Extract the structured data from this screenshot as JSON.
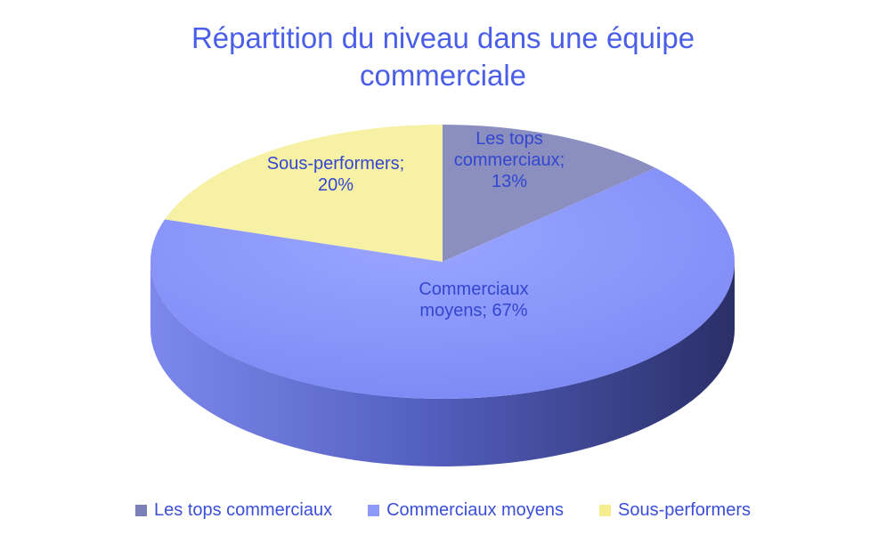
{
  "chart_data": {
    "type": "pie",
    "title": [
      "Répartition du niveau dans une équipe",
      "commerciale"
    ],
    "slices": [
      {
        "name": "Les tops commerciaux",
        "value": 13,
        "label_lines": [
          "Les tops",
          "commerciaux;",
          "13%"
        ],
        "color": "#8a8fc0"
      },
      {
        "name": "Commerciaux moyens",
        "value": 67,
        "label_lines": [
          "Commerciaux",
          "moyens; 67%"
        ],
        "color": "#8e9af7"
      },
      {
        "name": "Sous-performers",
        "value": 20,
        "label_lines": [
          "Sous-performers;",
          "20%"
        ],
        "color": "#f7f1a6"
      }
    ],
    "legend_position": "bottom",
    "style": "3d"
  }
}
